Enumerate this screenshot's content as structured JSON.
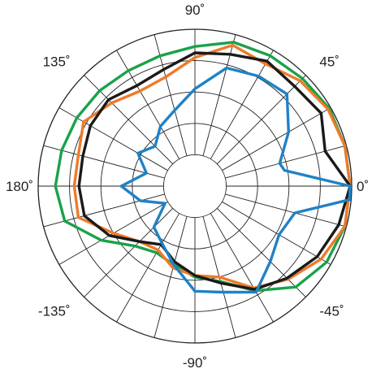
{
  "chart_data": {
    "type": "polar-line",
    "angle_unit": "degrees",
    "angle_ticks": [
      {
        "angle": 90,
        "label": "90˚"
      },
      {
        "angle": 45,
        "label": "45˚"
      },
      {
        "angle": 0,
        "label": "0˚"
      },
      {
        "angle": -45,
        "label": "-45˚"
      },
      {
        "angle": -90,
        "label": "-90˚"
      },
      {
        "angle": -135,
        "label": "-135˚"
      },
      {
        "angle": 180,
        "label": "180˚"
      },
      {
        "angle": 135,
        "label": "135˚"
      }
    ],
    "radial_range": [
      0,
      1
    ],
    "radial_rings": [
      0.2,
      0.4,
      0.6,
      0.8,
      1.0
    ],
    "spoke_step_deg": 15,
    "grid": true,
    "legend": false,
    "series": [
      {
        "color": "#1aa24a",
        "points": [
          [
            0,
            0.99
          ],
          [
            15,
            0.99
          ],
          [
            30,
            0.99
          ],
          [
            45,
            0.97
          ],
          [
            60,
            0.96
          ],
          [
            75,
            0.95
          ],
          [
            90,
            0.89
          ],
          [
            105,
            0.86
          ],
          [
            120,
            0.85
          ],
          [
            135,
            0.86
          ],
          [
            150,
            0.87
          ],
          [
            165,
            0.88
          ],
          [
            180,
            0.89
          ],
          [
            195,
            0.86
          ],
          [
            210,
            0.69
          ],
          [
            225,
            0.54
          ],
          [
            240,
            0.49
          ],
          [
            255,
            0.52
          ],
          [
            270,
            0.58
          ],
          [
            285,
            0.63
          ],
          [
            300,
            0.77
          ],
          [
            315,
            0.91
          ],
          [
            330,
            0.97
          ],
          [
            345,
            0.99
          ]
        ]
      },
      {
        "color": "#ef7a2a",
        "points": [
          [
            0,
            0.99
          ],
          [
            15,
            0.99
          ],
          [
            30,
            0.98
          ],
          [
            45,
            0.95
          ],
          [
            60,
            0.9
          ],
          [
            75,
            0.93
          ],
          [
            90,
            0.82
          ],
          [
            105,
            0.72
          ],
          [
            120,
            0.7
          ],
          [
            135,
            0.75
          ],
          [
            150,
            0.82
          ],
          [
            165,
            0.77
          ],
          [
            180,
            0.77
          ],
          [
            195,
            0.77
          ],
          [
            210,
            0.6
          ],
          [
            225,
            0.5
          ],
          [
            240,
            0.47
          ],
          [
            255,
            0.54
          ],
          [
            270,
            0.57
          ],
          [
            285,
            0.6
          ],
          [
            300,
            0.75
          ],
          [
            315,
            0.84
          ],
          [
            330,
            0.93
          ],
          [
            345,
            0.99
          ]
        ]
      },
      {
        "color": "#1a1a1a",
        "points": [
          [
            0,
            0.99
          ],
          [
            15,
            0.86
          ],
          [
            30,
            0.93
          ],
          [
            45,
            0.9
          ],
          [
            60,
            0.92
          ],
          [
            75,
            0.87
          ],
          [
            90,
            0.85
          ],
          [
            105,
            0.77
          ],
          [
            120,
            0.74
          ],
          [
            135,
            0.78
          ],
          [
            150,
            0.77
          ],
          [
            165,
            0.74
          ],
          [
            180,
            0.74
          ],
          [
            195,
            0.73
          ],
          [
            210,
            0.63
          ],
          [
            225,
            0.5
          ],
          [
            240,
            0.43
          ],
          [
            255,
            0.5
          ],
          [
            270,
            0.57
          ],
          [
            285,
            0.64
          ],
          [
            300,
            0.76
          ],
          [
            315,
            0.83
          ],
          [
            330,
            0.9
          ],
          [
            345,
            0.95
          ]
        ]
      },
      {
        "color": "#1f82c6",
        "points": [
          [
            0,
            0.99
          ],
          [
            10,
            0.58
          ],
          [
            15,
            0.56
          ],
          [
            30,
            0.69
          ],
          [
            45,
            0.83
          ],
          [
            60,
            0.81
          ],
          [
            75,
            0.78
          ],
          [
            90,
            0.62
          ],
          [
            105,
            0.5
          ],
          [
            120,
            0.44
          ],
          [
            135,
            0.36
          ],
          [
            150,
            0.42
          ],
          [
            165,
            0.32
          ],
          [
            180,
            0.47
          ],
          [
            195,
            0.36
          ],
          [
            210,
            0.22
          ],
          [
            225,
            0.37
          ],
          [
            240,
            0.42
          ],
          [
            255,
            0.52
          ],
          [
            270,
            0.67
          ],
          [
            285,
            0.7
          ],
          [
            300,
            0.78
          ],
          [
            315,
            0.68
          ],
          [
            330,
            0.62
          ],
          [
            345,
            0.66
          ],
          [
            355,
            0.99
          ]
        ]
      }
    ]
  }
}
